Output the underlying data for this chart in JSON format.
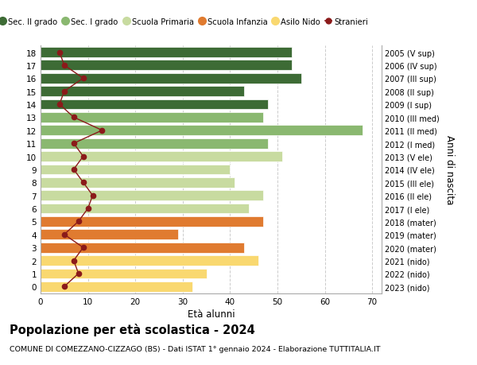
{
  "ages": [
    0,
    1,
    2,
    3,
    4,
    5,
    6,
    7,
    8,
    9,
    10,
    11,
    12,
    13,
    14,
    15,
    16,
    17,
    18
  ],
  "years": [
    "2023 (nido)",
    "2022 (nido)",
    "2021 (nido)",
    "2020 (mater)",
    "2019 (mater)",
    "2018 (mater)",
    "2017 (I ele)",
    "2016 (II ele)",
    "2015 (III ele)",
    "2014 (IV ele)",
    "2013 (V ele)",
    "2012 (I med)",
    "2011 (II med)",
    "2010 (III med)",
    "2009 (I sup)",
    "2008 (II sup)",
    "2007 (III sup)",
    "2006 (IV sup)",
    "2005 (V sup)"
  ],
  "bar_values": [
    32,
    35,
    46,
    43,
    29,
    47,
    44,
    47,
    41,
    40,
    51,
    48,
    68,
    47,
    48,
    43,
    55,
    53,
    53
  ],
  "stranieri": [
    5,
    8,
    7,
    9,
    5,
    8,
    10,
    11,
    9,
    7,
    9,
    7,
    13,
    7,
    4,
    5,
    9,
    5,
    4
  ],
  "color_map": [
    "#f9d870",
    "#f9d870",
    "#f9d870",
    "#e07b30",
    "#e07b30",
    "#e07b30",
    "#c8dba0",
    "#c8dba0",
    "#c8dba0",
    "#c8dba0",
    "#c8dba0",
    "#8ab870",
    "#8ab870",
    "#8ab870",
    "#3d6b35",
    "#3d6b35",
    "#3d6b35",
    "#3d6b35",
    "#3d6b35"
  ],
  "stranieri_color": "#8b1a1a",
  "title": "Popolazione per età scolastica - 2024",
  "subtitle": "COMUNE DI COMEZZANO-CIZZAGO (BS) - Dati ISTAT 1° gennaio 2024 - Elaborazione TUTTITALIA.IT",
  "xlabel": "Età alunni",
  "ylabel": "Anni di nascita",
  "xlim": [
    0,
    72
  ],
  "xticks": [
    0,
    10,
    20,
    30,
    40,
    50,
    60,
    70
  ],
  "background_color": "#ffffff",
  "grid_color": "#cccccc",
  "bar_height": 0.78,
  "legend_labels": [
    "Sec. II grado",
    "Sec. I grado",
    "Scuola Primaria",
    "Scuola Infanzia",
    "Asilo Nido",
    "Stranieri"
  ],
  "legend_colors": [
    "#3d6b35",
    "#8ab870",
    "#c8dba0",
    "#e07b30",
    "#f9d870",
    "#8b1a1a"
  ]
}
